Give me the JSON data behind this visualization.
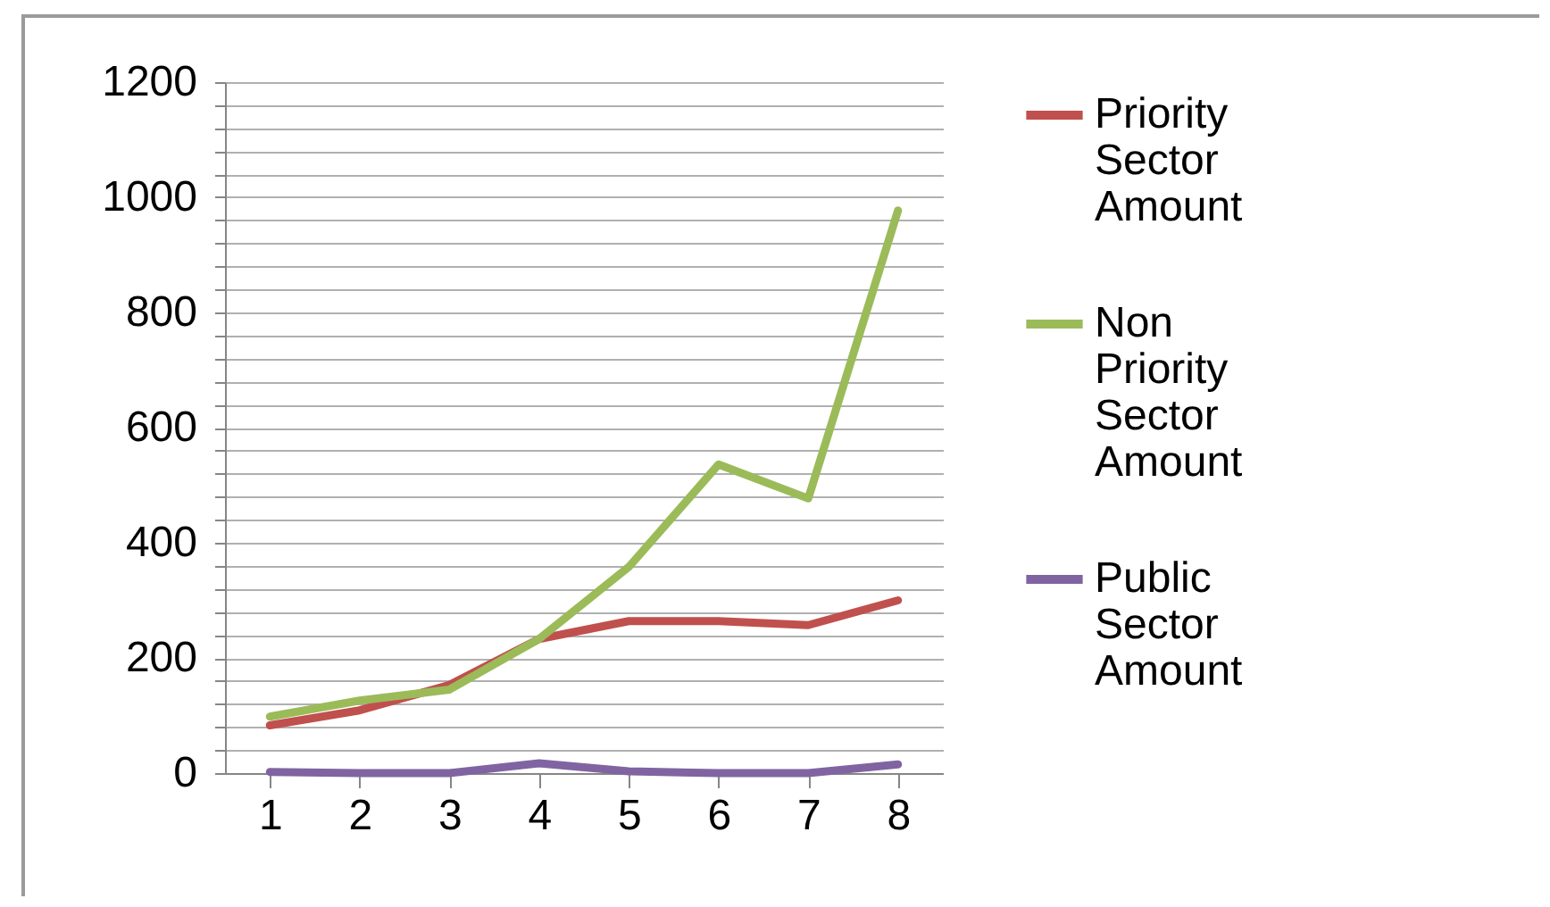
{
  "chart_data": {
    "type": "line",
    "categories": [
      "1",
      "2",
      "3",
      "4",
      "5",
      "6",
      "7",
      "8"
    ],
    "series": [
      {
        "name": "Priority Sector Amount",
        "color": "#c0504d",
        "values": [
          83,
          109,
          153,
          233,
          264,
          264,
          257,
          300
        ]
      },
      {
        "name": "Non Priority Sector Amount",
        "color": "#9bbb59",
        "values": [
          98,
          126,
          145,
          233,
          358,
          536,
          477,
          977
        ]
      },
      {
        "name": "Public  Sector Amount",
        "color": "#8064a2",
        "values": [
          2,
          0,
          0,
          17,
          3,
          0,
          0,
          15
        ]
      }
    ],
    "ylim": [
      0,
      1200
    ],
    "yticks": [
      0,
      {
        "value": 40,
        "label": null
      },
      {
        "value": 80,
        "label": null
      },
      {
        "value": 120,
        "label": null
      },
      {
        "value": 160,
        "label": null
      },
      200,
      {
        "value": 240,
        "label": null
      },
      {
        "value": 280,
        "label": null
      },
      {
        "value": 320,
        "label": null
      },
      {
        "value": 360,
        "label": null
      },
      400,
      {
        "value": 440,
        "label": null
      },
      {
        "value": 480,
        "label": null
      },
      {
        "value": 520,
        "label": null
      },
      {
        "value": 560,
        "label": null
      },
      600,
      {
        "value": 640,
        "label": null
      },
      {
        "value": 680,
        "label": null
      },
      {
        "value": 720,
        "label": null
      },
      {
        "value": 760,
        "label": null
      },
      800,
      {
        "value": 840,
        "label": null
      },
      {
        "value": 880,
        "label": null
      },
      {
        "value": 920,
        "label": null
      },
      {
        "value": 960,
        "label": null
      },
      1000,
      {
        "value": 1040,
        "label": null
      },
      {
        "value": 1080,
        "label": null
      },
      {
        "value": 1120,
        "label": null
      },
      {
        "value": 1160,
        "label": null
      },
      1200
    ],
    "grid": "y",
    "legend": "right",
    "marker": "none",
    "line_style": "solid"
  }
}
